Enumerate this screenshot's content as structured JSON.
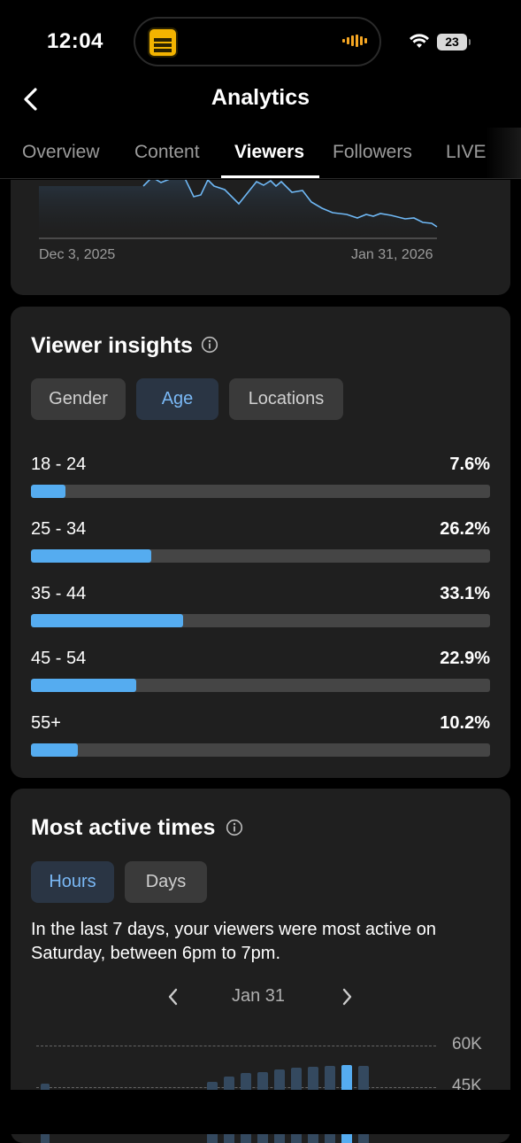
{
  "status_bar": {
    "time": "12:04",
    "battery": "23",
    "accent_color": "#f5a623"
  },
  "header": {
    "title": "Analytics",
    "back_icon": "chevron-left-icon"
  },
  "tabs": [
    {
      "label": "Overview",
      "active": false
    },
    {
      "label": "Content",
      "active": false
    },
    {
      "label": "Viewers",
      "active": true
    },
    {
      "label": "Followers",
      "active": false
    },
    {
      "label": "LIVE",
      "active": false
    }
  ],
  "trend_chart": {
    "start_date": "Dec 3, 2025",
    "end_date": "Jan 31, 2026",
    "line_color": "#6fb8f5"
  },
  "viewer_insights": {
    "title": "Viewer insights",
    "filters": [
      {
        "label": "Gender",
        "active": false
      },
      {
        "label": "Age",
        "active": true
      },
      {
        "label": "Locations",
        "active": false
      }
    ],
    "age_groups": [
      {
        "label": "18 - 24",
        "percent_text": "7.6%",
        "value": 7.6
      },
      {
        "label": "25 - 34",
        "percent_text": "26.2%",
        "value": 26.2
      },
      {
        "label": "35 - 44",
        "percent_text": "33.1%",
        "value": 33.1
      },
      {
        "label": "45 - 54",
        "percent_text": "22.9%",
        "value": 22.9
      },
      {
        "label": "55+",
        "percent_text": "10.2%",
        "value": 10.2
      }
    ],
    "bar_color": "#55acf0"
  },
  "most_active": {
    "title": "Most active times",
    "filters": [
      {
        "label": "Hours",
        "active": true
      },
      {
        "label": "Days",
        "active": false
      }
    ],
    "summary": "In the last 7 days, your viewers were most active on Saturday, between 6pm to 7pm.",
    "date": "Jan 31",
    "y_labels": [
      "60K",
      "45K"
    ],
    "highlight_color": "#55acf0"
  }
}
